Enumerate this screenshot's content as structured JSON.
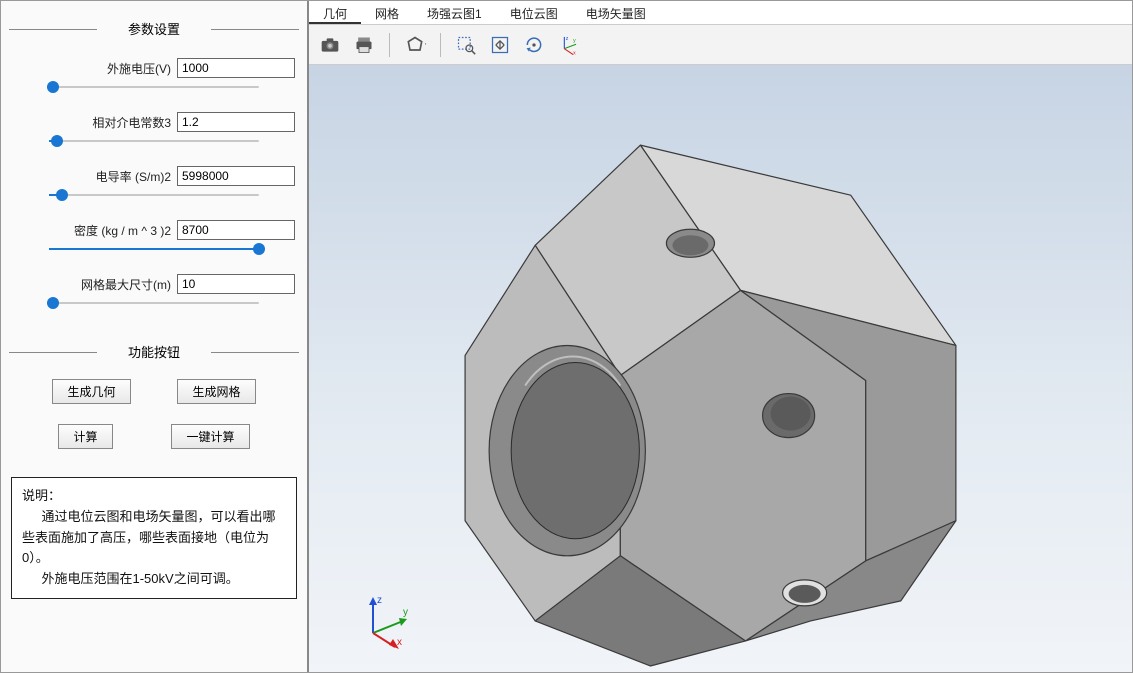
{
  "sidebar": {
    "section_params": "参数设置",
    "section_buttons": "功能按钮",
    "params": [
      {
        "label": "外施电压(V)",
        "value": "1000",
        "slider_pct": 2
      },
      {
        "label": "相对介电常数3",
        "value": "1.2",
        "slider_pct": 4
      },
      {
        "label": "电导率 (S/m)2",
        "value": "5998000",
        "slider_pct": 6
      },
      {
        "label": "密度 (kg / m ^ 3 )2",
        "value": "8700",
        "slider_pct": 100
      },
      {
        "label": "网格最大尺寸(m)",
        "value": "10",
        "slider_pct": 2
      }
    ],
    "buttons": {
      "gen_geom": "生成几何",
      "gen_mesh": "生成网格",
      "compute": "计算",
      "onekey": "一键计算"
    },
    "desc": {
      "title": "说明：",
      "p1": "通过电位云图和电场矢量图，可以看出哪些表面施加了高压，哪些表面接地（电位为0）。",
      "p2": "外施电压范围在1-50kV之间可调。"
    }
  },
  "tabs": [
    {
      "label": "几何",
      "active": true
    },
    {
      "label": "网格",
      "active": false
    },
    {
      "label": "场强云图1",
      "active": false
    },
    {
      "label": "电位云图",
      "active": false
    },
    {
      "label": "电场矢量图",
      "active": false
    }
  ],
  "toolbar": {
    "icons": [
      "camera",
      "print",
      "sep",
      "polygon",
      "sep",
      "zoom-select",
      "zoom-fit",
      "rotate",
      "triad"
    ]
  },
  "colors": {
    "viewport_top": "#c7d4e4",
    "viewport_bottom": "#f1f4f8",
    "model_light": "#d4d4d4",
    "model_mid": "#b8b8b8",
    "model_dark": "#9a9a9a",
    "model_edge": "#3a3a3a",
    "axis_x": "#d42020",
    "axis_y": "#1a9a1a",
    "axis_z": "#2050d4"
  }
}
